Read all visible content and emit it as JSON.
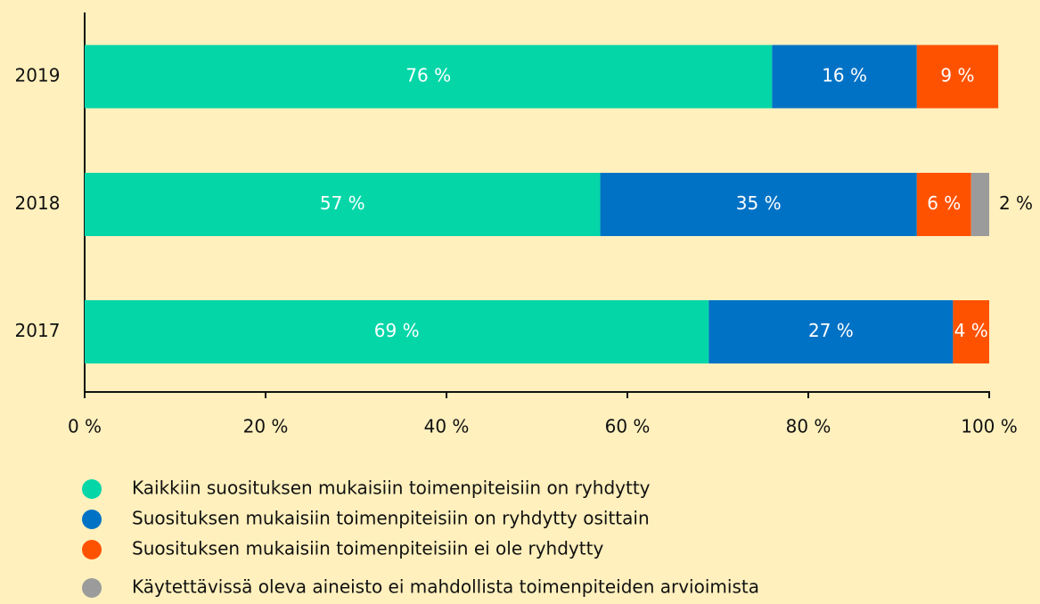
{
  "chart_data": {
    "type": "stacked_bar_horizontal",
    "categories": [
      "2019",
      "2018",
      "2017"
    ],
    "series": [
      {
        "name": "Kaikkiin suosituksen mukaisiin toimenpiteisiin on ryhdytty",
        "color": "#04d6a8",
        "values": [
          76,
          57,
          69
        ],
        "value_labels": [
          "76 %",
          "57 %",
          "69 %"
        ]
      },
      {
        "name": "Suosituksen mukaisiin toimenpiteisiin on ryhdytty osittain",
        "color": "#0072c6",
        "values": [
          16,
          35,
          27
        ],
        "value_labels": [
          "16 %",
          "35 %",
          "27 %"
        ]
      },
      {
        "name": "Suosituksen mukaisiin toimenpiteisiin ei ole ryhdytty",
        "color": "#ff5200",
        "values": [
          9,
          6,
          4
        ],
        "value_labels": [
          "9 %",
          "6 %",
          "4 %"
        ]
      },
      {
        "name": "Käytettävissä oleva aineisto ei mahdollista toimenpiteiden arvioimista",
        "color": "#9b9b9b",
        "values": [
          null,
          2,
          null
        ],
        "value_labels": [
          null,
          "2 %",
          null
        ]
      }
    ],
    "xlim": [
      0,
      100
    ],
    "xticks": [
      {
        "value": 0,
        "label": "0 %"
      },
      {
        "value": 20,
        "label": "20 %"
      },
      {
        "value": 40,
        "label": "40 %"
      },
      {
        "value": 60,
        "label": "60 %"
      },
      {
        "value": 80,
        "label": "80 %"
      },
      {
        "value": 100,
        "label": "100 %"
      }
    ]
  }
}
